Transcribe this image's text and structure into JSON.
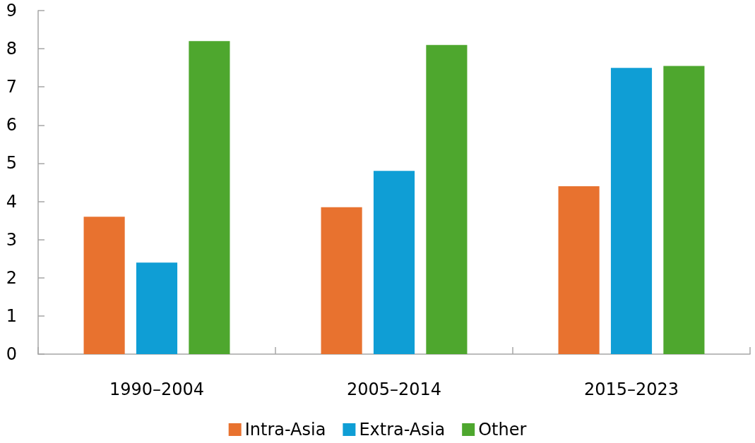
{
  "chart_data": {
    "type": "bar",
    "categories": [
      "1990–2004",
      "2005–2014",
      "2015–2023"
    ],
    "series": [
      {
        "name": "Intra-Asia",
        "color": "#e8722f",
        "values": [
          3.6,
          3.85,
          4.4
        ]
      },
      {
        "name": "Extra-Asia",
        "color": "#0f9ed5",
        "values": [
          2.4,
          4.8,
          7.5
        ]
      },
      {
        "name": "Other",
        "color": "#4ea72e",
        "values": [
          8.2,
          8.1,
          7.55
        ]
      }
    ],
    "ylim": [
      0,
      9
    ],
    "yticks": [
      0,
      1,
      2,
      3,
      4,
      5,
      6,
      7,
      8,
      9
    ],
    "legend": "bottom"
  }
}
